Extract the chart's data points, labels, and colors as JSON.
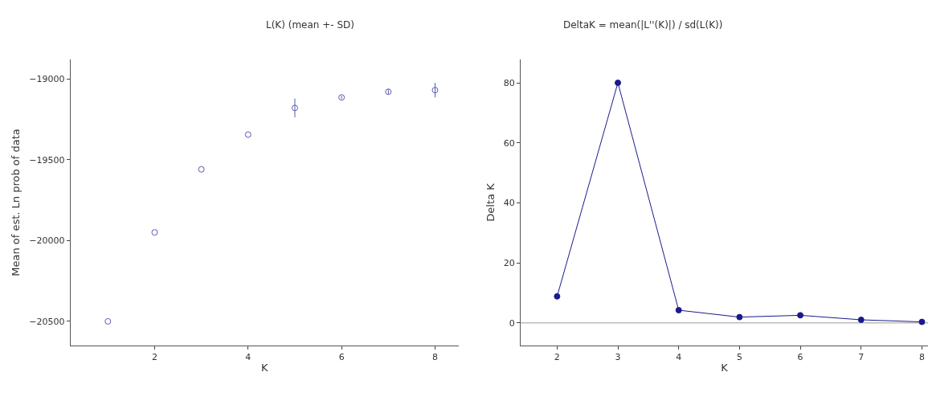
{
  "chart_data": [
    {
      "type": "scatter",
      "title": "L(K) (mean +- SD)",
      "xlabel": "K",
      "ylabel": "Mean of est. Ln prob of data",
      "x": [
        1,
        2,
        3,
        4,
        5,
        6,
        7,
        8
      ],
      "series": [
        {
          "color": "#5a5ab4",
          "values": [
            -20500,
            -19950,
            -19560,
            -19345,
            -19180,
            -19115,
            -19080,
            -19070
          ],
          "errors": [
            null,
            null,
            null,
            null,
            58,
            10,
            15,
            45
          ]
        }
      ],
      "xlim": [
        0.2,
        8.5
      ],
      "xticks": [
        2,
        4,
        6,
        8
      ],
      "ylim": [
        -20650,
        -18880
      ],
      "yticks": [
        -20500,
        -20000,
        -19500,
        -19000
      ],
      "grid": false,
      "legend": false,
      "marker": "circle"
    },
    {
      "type": "line",
      "title": "DeltaK = mean(|L''(K)|) / sd(L(K))",
      "xlabel": "K",
      "ylabel": "Delta K",
      "x": [
        2,
        3,
        4,
        5,
        6,
        7,
        8
      ],
      "series": [
        {
          "color": "#1a1a8c",
          "values": [
            8.8,
            80,
            4.2,
            1.9,
            2.5,
            1.0,
            0.3
          ]
        }
      ],
      "xlim": [
        1.4,
        8.1
      ],
      "xticks": [
        2,
        3,
        4,
        5,
        6,
        7,
        8
      ],
      "ylim": [
        -7.6,
        87.8
      ],
      "yticks": [
        0,
        20,
        40,
        60,
        80
      ],
      "grid": false,
      "legend": false,
      "marker": "circle",
      "line_style": "solid",
      "ref_lines": [
        {
          "axis": "y",
          "value": 0,
          "color": "#bbbbbb"
        }
      ]
    }
  ]
}
